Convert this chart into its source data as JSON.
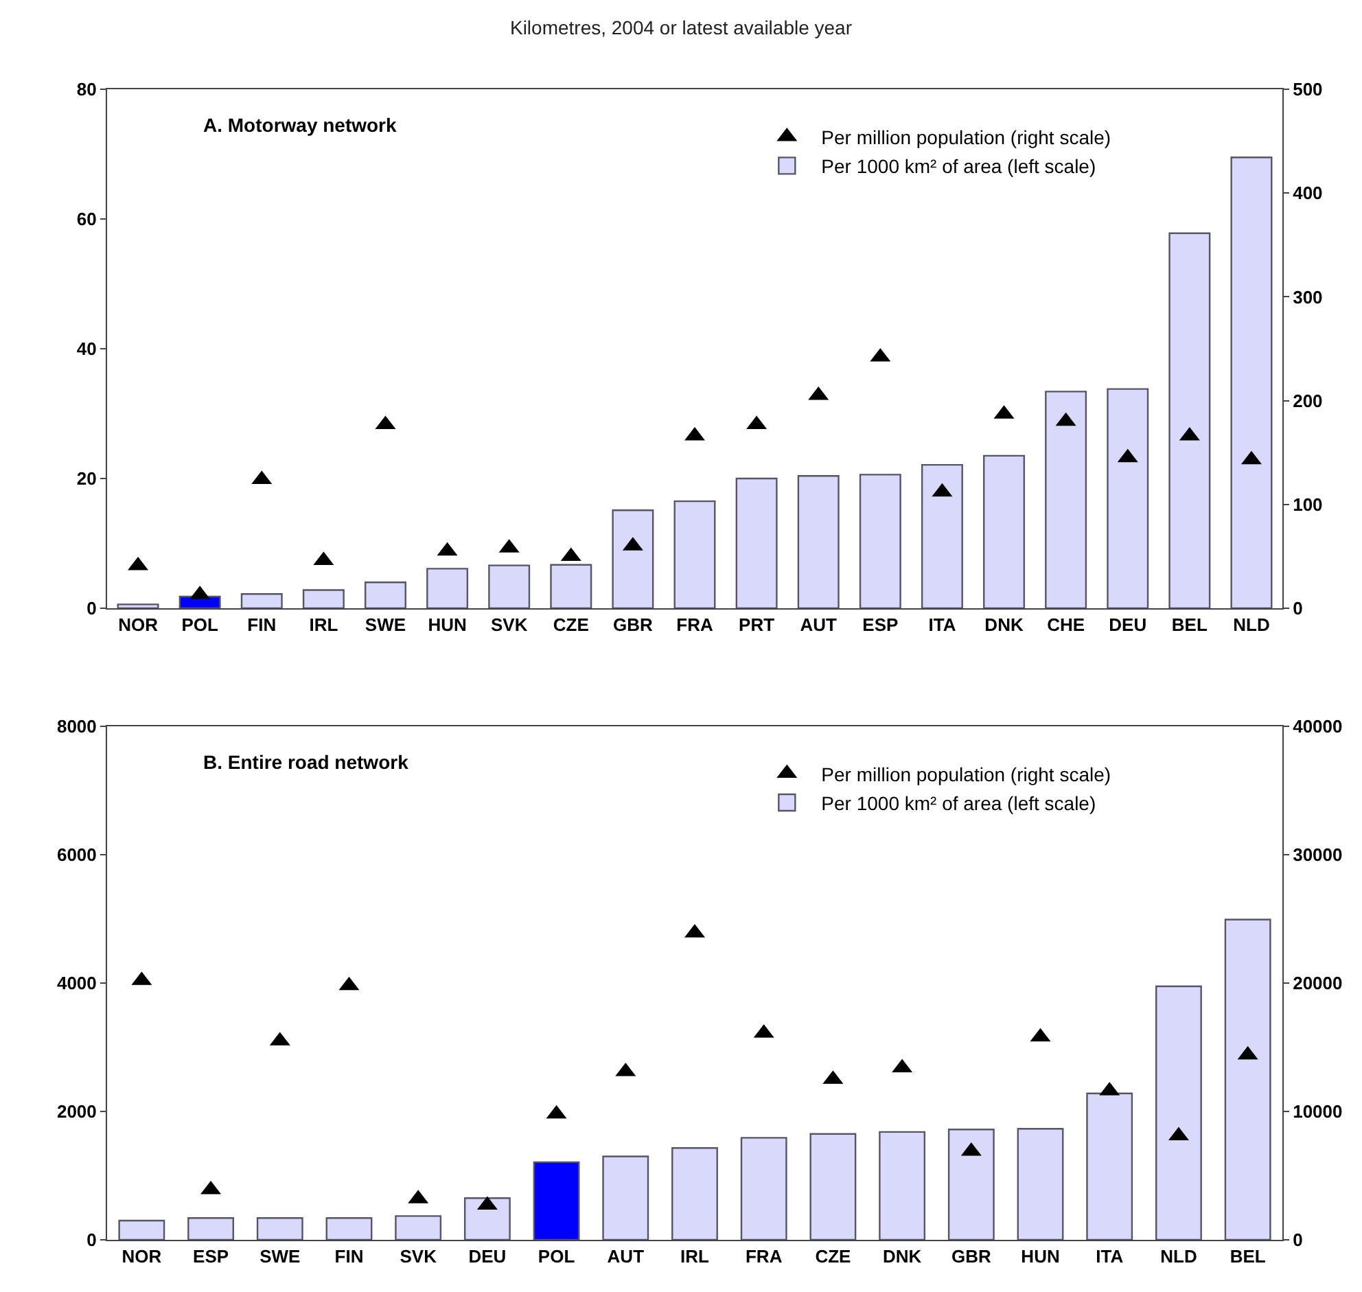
{
  "chart_data": [
    {
      "type": "bar",
      "subtitle": "Kilometres, 2004 or latest available year",
      "title": "A. Motorway network",
      "categories": [
        "NOR",
        "POL",
        "FIN",
        "IRL",
        "SWE",
        "HUN",
        "SVK",
        "CZE",
        "GBR",
        "FRA",
        "PRT",
        "AUT",
        "ESP",
        "ITA",
        "DNK",
        "CHE",
        "DEU",
        "BEL",
        "NLD"
      ],
      "series": [
        {
          "name": "Per million population (right scale)",
          "type": "scatter",
          "axis": "y2",
          "color": "#000000",
          "values": [
            41,
            13,
            124,
            46,
            177,
            55,
            58,
            50,
            60,
            166,
            177,
            205,
            242,
            112,
            187,
            180,
            145,
            166,
            143
          ]
        },
        {
          "name": "Per 1000 km² of area (left scale)",
          "colors": [
            "#d9d9fb",
            "#0000ff",
            "#d9d9fb",
            "#d9d9fb",
            "#d9d9fb",
            "#d9d9fb",
            "#d9d9fb",
            "#d9d9fb",
            "#d9d9fb",
            "#d9d9fb",
            "#d9d9fb",
            "#d9d9fb",
            "#d9d9fb",
            "#d9d9fb",
            "#d9d9fb",
            "#d9d9fb",
            "#d9d9fb",
            "#d9d9fb",
            "#d9d9fb"
          ],
          "values": [
            0.6,
            1.8,
            2.2,
            2.8,
            4.0,
            6.1,
            6.6,
            6.7,
            15.1,
            16.5,
            20.0,
            20.4,
            20.6,
            22.1,
            23.5,
            33.4,
            33.8,
            57.8,
            69.5
          ]
        }
      ],
      "ylim": [
        0,
        80
      ],
      "yticks": [
        0,
        20,
        40,
        60,
        80
      ],
      "y2lim": [
        0,
        500
      ],
      "y2ticks": [
        0,
        100,
        200,
        300,
        400,
        500
      ],
      "grid": false,
      "legend": "top right",
      "marker": "triangle"
    },
    {
      "type": "bar",
      "title": "B. Entire road network",
      "categories": [
        "NOR",
        "ESP",
        "SWE",
        "FIN",
        "SVK",
        "DEU",
        "POL",
        "AUT",
        "IRL",
        "FRA",
        "CZE",
        "DNK",
        "GBR",
        "HUN",
        "ITA",
        "NLD",
        "BEL"
      ],
      "series": [
        {
          "name": "Per million population (right scale)",
          "type": "scatter",
          "axis": "y2",
          "color": "#000000",
          "values": [
            20200,
            3900,
            15500,
            19800,
            3200,
            2700,
            9800,
            13100,
            23900,
            16100,
            12500,
            13400,
            6900,
            15800,
            11600,
            8100,
            14400
          ]
        },
        {
          "name": "Per 1000 km² of area (left scale)",
          "colors": [
            "#d9d9fb",
            "#d9d9fb",
            "#d9d9fb",
            "#d9d9fb",
            "#d9d9fb",
            "#d9d9fb",
            "#0000ff",
            "#d9d9fb",
            "#d9d9fb",
            "#d9d9fb",
            "#d9d9fb",
            "#d9d9fb",
            "#d9d9fb",
            "#d9d9fb",
            "#d9d9fb",
            "#d9d9fb",
            "#d9d9fb"
          ],
          "values": [
            300,
            340,
            340,
            340,
            370,
            650,
            1210,
            1300,
            1430,
            1590,
            1650,
            1680,
            1720,
            1730,
            2280,
            3950,
            4990
          ]
        }
      ],
      "ylim": [
        0,
        8000
      ],
      "yticks": [
        0,
        2000,
        4000,
        6000,
        8000
      ],
      "y2lim": [
        0,
        40000
      ],
      "y2ticks": [
        0,
        10000,
        20000,
        30000,
        40000
      ],
      "grid": false,
      "legend": "top right",
      "marker": "triangle"
    }
  ]
}
